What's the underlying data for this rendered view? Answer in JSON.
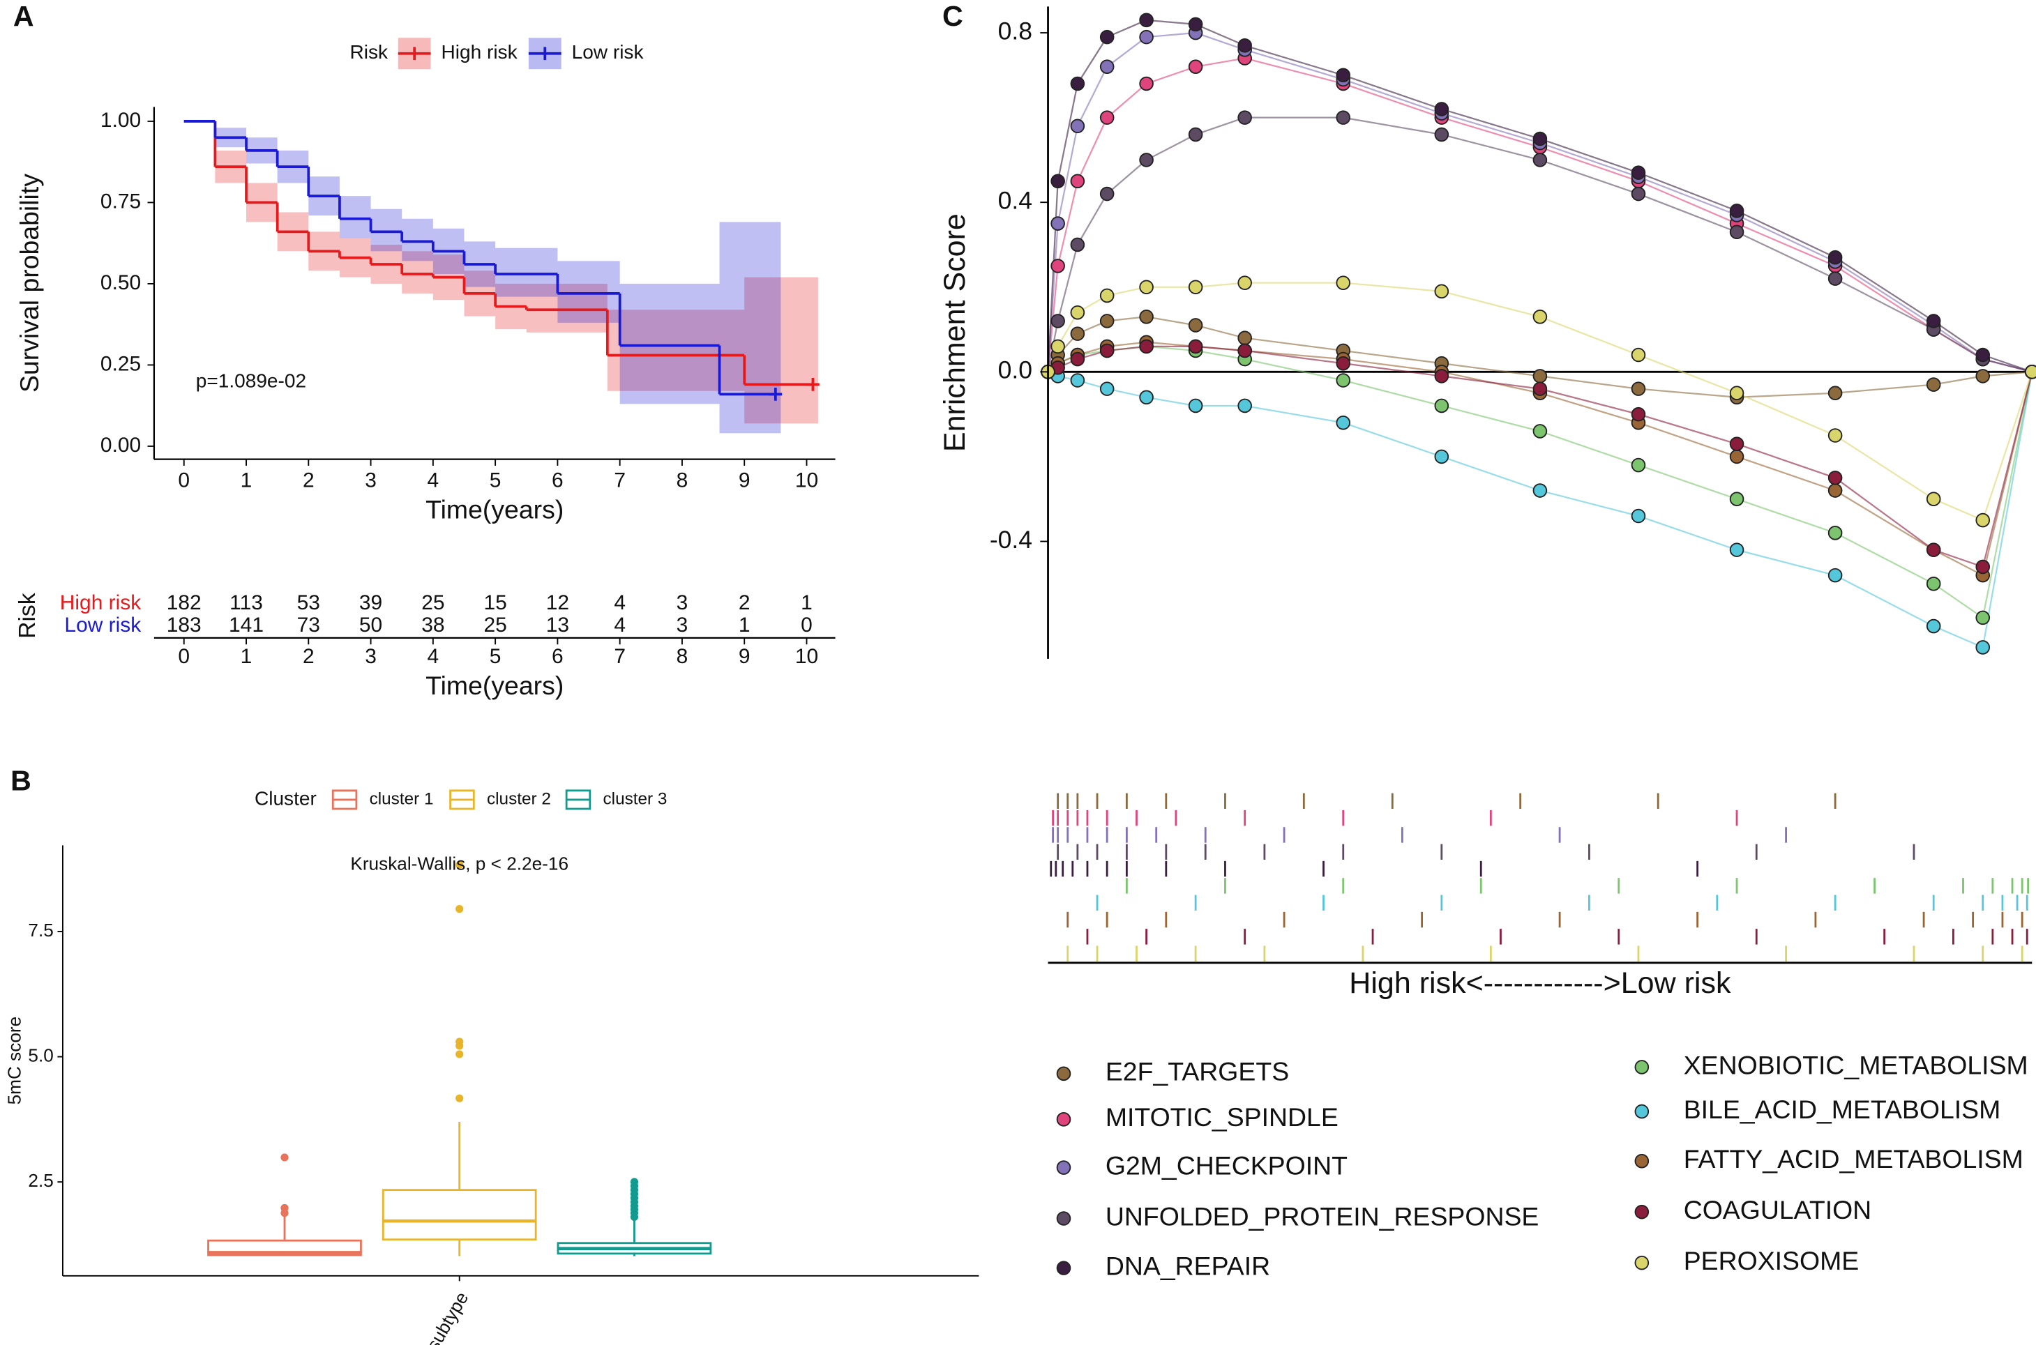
{
  "chart_data": [
    {
      "panel": "A",
      "type": "line",
      "step": true,
      "legend_title": "Risk",
      "legend_position": "top",
      "xlabel": "Time(years)",
      "ylabel": "Survival probability",
      "annotation": "p=1.089e-02",
      "xlim": [
        -0.48,
        10.46
      ],
      "xticks": [
        0,
        1,
        2,
        3,
        4,
        5,
        6,
        7,
        8,
        9,
        10
      ],
      "ylim": [
        -0.04,
        1.044
      ],
      "yticks": [
        {
          "value": 0,
          "label": "0.00"
        },
        {
          "value": 0.25,
          "label": "0.25"
        },
        {
          "value": 0.5,
          "label": "0.50"
        },
        {
          "value": 0.75,
          "label": "0.75"
        },
        {
          "value": 1,
          "label": "1.00"
        }
      ],
      "series": [
        {
          "name": "High risk",
          "color": "#e41a1c",
          "x": [
            0,
            0.5,
            1,
            1.5,
            2,
            2.5,
            3,
            3.5,
            4,
            4.5,
            5,
            5.5,
            6.8,
            9,
            10.1
          ],
          "values": [
            1,
            0.86,
            0.75,
            0.66,
            0.6,
            0.58,
            0.56,
            0.53,
            0.52,
            0.47,
            0.43,
            0.42,
            0.28,
            0.19,
            0.19
          ],
          "ci_lower": [
            1,
            0.81,
            0.69,
            0.6,
            0.54,
            0.52,
            0.5,
            0.47,
            0.45,
            0.4,
            0.36,
            0.35,
            0.17,
            0.07,
            0.07
          ],
          "ci_upper": [
            1,
            0.91,
            0.81,
            0.72,
            0.66,
            0.64,
            0.62,
            0.6,
            0.59,
            0.54,
            0.5,
            0.5,
            0.42,
            0.52,
            0.52
          ]
        },
        {
          "name": "Low risk",
          "color": "#1a1ad4",
          "x": [
            0,
            0.5,
            1,
            1.5,
            2,
            2.5,
            3,
            3.5,
            4,
            4.5,
            5,
            6,
            7,
            8.6,
            9.5
          ],
          "values": [
            1,
            0.95,
            0.91,
            0.86,
            0.77,
            0.7,
            0.66,
            0.63,
            0.6,
            0.56,
            0.53,
            0.47,
            0.31,
            0.16,
            0.16
          ],
          "ci_lower": [
            1,
            0.92,
            0.87,
            0.81,
            0.71,
            0.64,
            0.6,
            0.57,
            0.53,
            0.49,
            0.46,
            0.38,
            0.13,
            0.04,
            0.04
          ],
          "ci_upper": [
            1,
            0.98,
            0.95,
            0.91,
            0.83,
            0.77,
            0.73,
            0.7,
            0.67,
            0.63,
            0.61,
            0.57,
            0.5,
            0.69,
            0.69
          ]
        }
      ],
      "risk_table": {
        "title": "Risk",
        "rows": [
          [
            182,
            113,
            53,
            39,
            25,
            15,
            12,
            4,
            3,
            2,
            1
          ],
          [
            183,
            141,
            73,
            50,
            38,
            25,
            13,
            4,
            3,
            1,
            0
          ]
        ]
      }
    },
    {
      "panel": "B",
      "type": "box",
      "legend_title": "Cluster",
      "legend_position": "top",
      "ylabel": "5mC score",
      "annotation": "Kruskal-Wallis, p < 2.2e-16",
      "categories": [
        "subtype"
      ],
      "ylim": [
        0.625,
        9.22
      ],
      "yticks": [
        2.5,
        {
          "value": 5,
          "label": "5.0"
        },
        7.5
      ],
      "series": [
        {
          "name": "cluster 1",
          "color": "#e8735a",
          "min": 1.04,
          "q1": 1.04,
          "median": 1.09,
          "q3": 1.33,
          "max": 1.85,
          "outliers": [
            1.88,
            1.98,
            2.99
          ]
        },
        {
          "name": "cluster 2",
          "color": "#e8b52a",
          "min": 1.02,
          "q1": 1.35,
          "median": 1.72,
          "q3": 2.34,
          "max": 3.7,
          "outliers": [
            4.17,
            5.05,
            5.22,
            5.3,
            7.95,
            8.83
          ]
        },
        {
          "name": "cluster 3",
          "color": "#139a8e",
          "min": 1.02,
          "q1": 1.07,
          "median": 1.17,
          "q3": 1.28,
          "max": 1.75,
          "outliers": [
            1.8,
            1.88,
            1.95,
            2.02,
            2.1,
            2.18,
            2.26,
            2.34,
            2.42,
            2.5
          ]
        }
      ]
    },
    {
      "panel": "C",
      "type": "gsea",
      "ylabel": "Enrichment Score",
      "xlabel": "High risk<------------>Low risk",
      "xlim": [
        0,
        100
      ],
      "ylim": [
        -0.677,
        0.862
      ],
      "yticks": [
        -0.4,
        {
          "value": 0,
          "label": "0.0"
        },
        0.4,
        0.8
      ],
      "x": [
        0,
        1,
        3,
        6,
        10,
        15,
        20,
        30,
        40,
        50,
        60,
        70,
        80,
        90,
        95,
        100
      ],
      "series": [
        {
          "name": "E2F_TARGETS",
          "color": "#8b6a3e",
          "values": [
            0,
            0.04,
            0.09,
            0.12,
            0.13,
            0.11,
            0.08,
            0.05,
            0.02,
            -0.01,
            -0.04,
            -0.06,
            -0.05,
            -0.03,
            -0.01,
            0
          ],
          "hits": [
            1,
            2,
            3,
            5,
            8,
            12,
            18,
            26,
            35,
            48,
            62,
            80
          ]
        },
        {
          "name": "MITOTIC_SPINDLE",
          "color": "#e0447c",
          "values": [
            0,
            0.25,
            0.45,
            0.6,
            0.68,
            0.72,
            0.74,
            0.68,
            0.6,
            0.53,
            0.45,
            0.35,
            0.25,
            0.1,
            0.03,
            0
          ],
          "hits": [
            0.5,
            1,
            2,
            3,
            4,
            6,
            9,
            13,
            20,
            30,
            45,
            70
          ]
        },
        {
          "name": "G2M_CHECKPOINT",
          "color": "#8372b8",
          "values": [
            0,
            0.35,
            0.58,
            0.72,
            0.79,
            0.8,
            0.76,
            0.69,
            0.61,
            0.54,
            0.46,
            0.37,
            0.26,
            0.11,
            0.03,
            0
          ],
          "hits": [
            0.5,
            1,
            2,
            4,
            6,
            8,
            11,
            16,
            24,
            36,
            52,
            75
          ]
        },
        {
          "name": "UNFOLDED_PROTEIN_RESPONSE",
          "color": "#5d4b63",
          "values": [
            0,
            0.12,
            0.3,
            0.42,
            0.5,
            0.56,
            0.6,
            0.6,
            0.56,
            0.5,
            0.42,
            0.33,
            0.22,
            0.1,
            0.03,
            0
          ],
          "hits": [
            1,
            3,
            5,
            8,
            12,
            16,
            22,
            30,
            40,
            55,
            72,
            88
          ]
        },
        {
          "name": "DNA_REPAIR",
          "color": "#3a1e40",
          "values": [
            0,
            0.45,
            0.68,
            0.79,
            0.83,
            0.82,
            0.77,
            0.7,
            0.62,
            0.55,
            0.47,
            0.38,
            0.27,
            0.12,
            0.04,
            0
          ],
          "hits": [
            0.3,
            0.8,
            1.5,
            2.5,
            4,
            6,
            8,
            12,
            18,
            28,
            44,
            66
          ]
        },
        {
          "name": "XENOBIOTIC_METABOLISM",
          "color": "#7cc46e",
          "values": [
            0,
            0.02,
            0.04,
            0.05,
            0.06,
            0.05,
            0.03,
            -0.02,
            -0.08,
            -0.14,
            -0.22,
            -0.3,
            -0.38,
            -0.5,
            -0.58,
            0
          ],
          "hits": [
            8,
            18,
            30,
            44,
            58,
            70,
            84,
            93,
            96,
            98,
            99,
            99.6
          ]
        },
        {
          "name": "BILE_ACID_METABOLISM",
          "color": "#55c7db",
          "values": [
            0,
            -0.01,
            -0.02,
            -0.04,
            -0.06,
            -0.08,
            -0.08,
            -0.12,
            -0.2,
            -0.28,
            -0.34,
            -0.42,
            -0.48,
            -0.6,
            -0.65,
            0
          ],
          "hits": [
            5,
            15,
            28,
            40,
            55,
            68,
            80,
            90,
            95,
            97,
            98.5,
            99.5
          ]
        },
        {
          "name": "FATTY_ACID_METABOLISM",
          "color": "#9a6534",
          "values": [
            0,
            0.02,
            0.04,
            0.06,
            0.07,
            0.06,
            0.05,
            0.03,
            0,
            -0.05,
            -0.12,
            -0.2,
            -0.28,
            -0.42,
            -0.48,
            0
          ],
          "hits": [
            2,
            6,
            12,
            24,
            38,
            52,
            66,
            78,
            89,
            94,
            97,
            99
          ]
        },
        {
          "name": "COAGULATION",
          "color": "#8a1c3c",
          "values": [
            0,
            0.01,
            0.03,
            0.05,
            0.06,
            0.06,
            0.05,
            0.02,
            -0.01,
            -0.04,
            -0.1,
            -0.17,
            -0.25,
            -0.42,
            -0.46,
            0
          ],
          "hits": [
            4,
            10,
            20,
            33,
            46,
            58,
            72,
            85,
            92,
            96,
            98,
            99.5
          ]
        },
        {
          "name": "PEROXISOME",
          "color": "#dad56a",
          "values": [
            0,
            0.06,
            0.14,
            0.18,
            0.2,
            0.2,
            0.21,
            0.21,
            0.19,
            0.13,
            0.04,
            -0.05,
            -0.15,
            -0.3,
            -0.35,
            0
          ],
          "hits": [
            2,
            5,
            9,
            15,
            22,
            32,
            45,
            60,
            75,
            88,
            95,
            99
          ]
        }
      ]
    }
  ]
}
